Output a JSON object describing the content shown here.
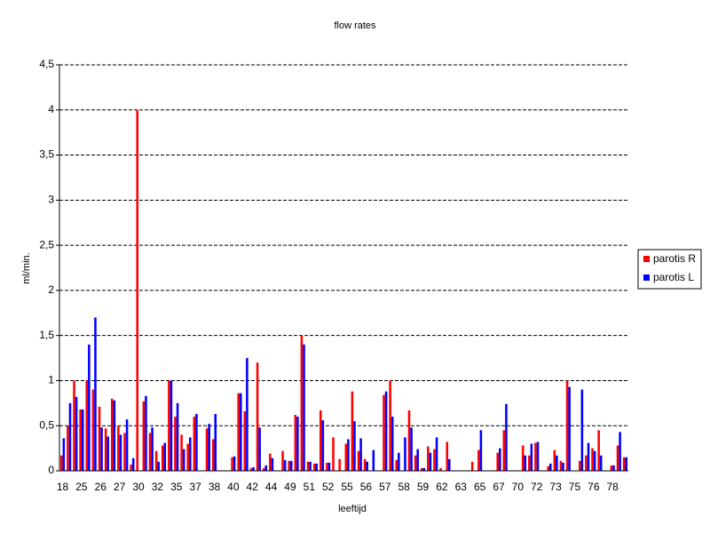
{
  "chart_data": {
    "type": "bar",
    "title": "flow rates",
    "x_label": "leeftijd",
    "y_label": "ml/min.",
    "categories": [
      "18",
      null,
      null,
      "25",
      null,
      null,
      "26",
      null,
      null,
      "27",
      null,
      null,
      "30",
      null,
      null,
      "32",
      null,
      null,
      "35",
      null,
      null,
      "37",
      null,
      null,
      "38",
      null,
      null,
      "40",
      null,
      null,
      "42",
      null,
      null,
      "44",
      null,
      null,
      "49",
      null,
      null,
      "51",
      null,
      null,
      "52",
      null,
      null,
      "55",
      null,
      null,
      "56",
      null,
      null,
      "57",
      null,
      null,
      "58",
      null,
      null,
      "59",
      null,
      null,
      "62",
      null,
      null,
      "63",
      null,
      null,
      "65",
      null,
      null,
      "67",
      null,
      null,
      "70",
      null,
      null,
      "72",
      null,
      null,
      "73",
      null,
      null,
      "75",
      null,
      null,
      "76",
      null,
      null,
      "78",
      null,
      null
    ],
    "series": [
      {
        "name": "parotis R",
        "color": "#ff0000",
        "values": [
          0.17,
          0.5,
          1.0,
          0.68,
          1.0,
          0.9,
          0.71,
          0.47,
          0.8,
          0.5,
          0.42,
          0.07,
          4.0,
          0.77,
          0.42,
          0.22,
          0.28,
          1.0,
          0.6,
          0.4,
          0.3,
          0.6,
          0,
          0.47,
          0.35,
          0,
          0,
          0.15,
          0.86,
          0.66,
          0.03,
          1.2,
          0.03,
          0.19,
          0,
          0.22,
          0.11,
          0.62,
          1.5,
          0.1,
          0.08,
          0.67,
          0.09,
          0.37,
          0.13,
          0.3,
          0.88,
          0.22,
          0.13,
          0,
          0,
          0.84,
          1.0,
          0.12,
          0,
          0.67,
          0.17,
          0.03,
          0.27,
          0.24,
          0.03,
          0.32,
          0,
          0,
          0,
          0.1,
          0.23,
          0,
          0,
          0.2,
          0.45,
          0,
          0,
          0.28,
          0.17,
          0.31,
          0,
          0.05,
          0.23,
          0.11,
          1.0,
          0,
          0.11,
          0.17,
          0.25,
          0.45,
          0,
          0.06,
          0.28,
          0.15
        ]
      },
      {
        "name": "parotis L",
        "color": "#0000ff",
        "values": [
          0.36,
          0.75,
          0.82,
          0.68,
          1.4,
          1.7,
          0.48,
          0.38,
          0.78,
          0.4,
          0.57,
          0.14,
          0,
          0.83,
          0.48,
          0.1,
          0.31,
          1.0,
          0.75,
          0.24,
          0.37,
          0.63,
          0,
          0.52,
          0.63,
          0,
          0,
          0.16,
          0.86,
          1.25,
          0.04,
          0.48,
          0.06,
          0.14,
          0,
          0.12,
          0.11,
          0.6,
          1.4,
          0.1,
          0.08,
          0.56,
          0.09,
          0,
          0,
          0.35,
          0.55,
          0.36,
          0.1,
          0.23,
          0,
          0.88,
          0.6,
          0.2,
          0.37,
          0.48,
          0.24,
          0.03,
          0.2,
          0.37,
          0,
          0.13,
          0,
          0,
          0,
          0,
          0.45,
          0,
          0,
          0.25,
          0.74,
          0,
          0,
          0.17,
          0.3,
          0.32,
          0,
          0.08,
          0.17,
          0.09,
          0.93,
          0,
          0.9,
          0.31,
          0.22,
          0.17,
          0,
          0.06,
          0.43,
          0.15
        ]
      }
    ],
    "ylim": [
      0,
      4.5
    ],
    "yticks": [
      0,
      {
        "value": 0.5,
        "label": "0,5"
      },
      1,
      {
        "value": 1.5,
        "label": "1,5"
      },
      2,
      {
        "value": 2.5,
        "label": "2,5"
      },
      3,
      {
        "value": 3.5,
        "label": "3,5"
      },
      4,
      {
        "value": 4.5,
        "label": "4,5"
      }
    ],
    "grid": true,
    "legend": "right"
  }
}
